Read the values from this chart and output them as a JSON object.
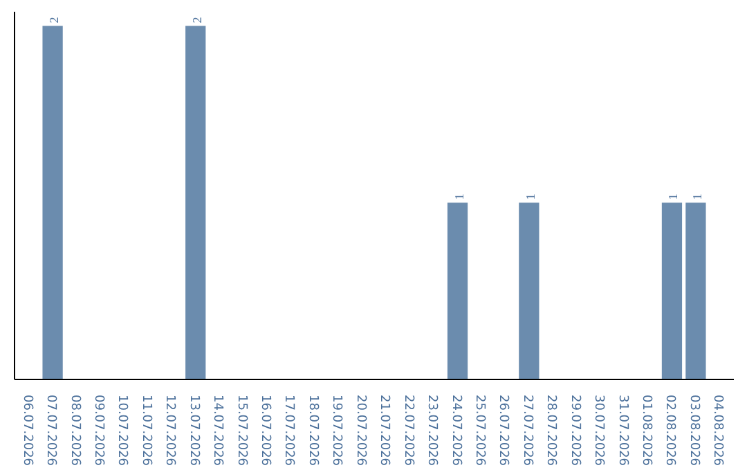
{
  "chart_data": {
    "type": "bar",
    "categories": [
      "06.07.2026",
      "07.07.2026",
      "08.07.2026",
      "09.07.2026",
      "10.07.2026",
      "11.07.2026",
      "12.07.2026",
      "13.07.2026",
      "14.07.2026",
      "15.07.2026",
      "16.07.2026",
      "17.07.2026",
      "18.07.2026",
      "19.07.2026",
      "20.07.2026",
      "21.07.2026",
      "22.07.2026",
      "23.07.2026",
      "24.07.2026",
      "25.07.2026",
      "26.07.2026",
      "27.07.2026",
      "28.07.2026",
      "29.07.2026",
      "30.07.2026",
      "31.07.2026",
      "01.08.2026",
      "02.08.2026",
      "03.08.2026",
      "04.08.2026"
    ],
    "values": [
      0,
      2,
      0,
      0,
      0,
      0,
      0,
      2,
      0,
      0,
      0,
      0,
      0,
      0,
      0,
      0,
      0,
      0,
      1,
      0,
      0,
      1,
      0,
      0,
      0,
      0,
      0,
      1,
      1,
      0
    ],
    "value_labels": [
      null,
      "2",
      null,
      null,
      null,
      null,
      null,
      "2",
      null,
      null,
      null,
      null,
      null,
      null,
      null,
      null,
      null,
      null,
      "1",
      null,
      null,
      "1",
      null,
      null,
      null,
      null,
      null,
      "1",
      "1",
      null
    ],
    "color": "#6b8cae",
    "grid": false,
    "tick_labels": "x"
  }
}
